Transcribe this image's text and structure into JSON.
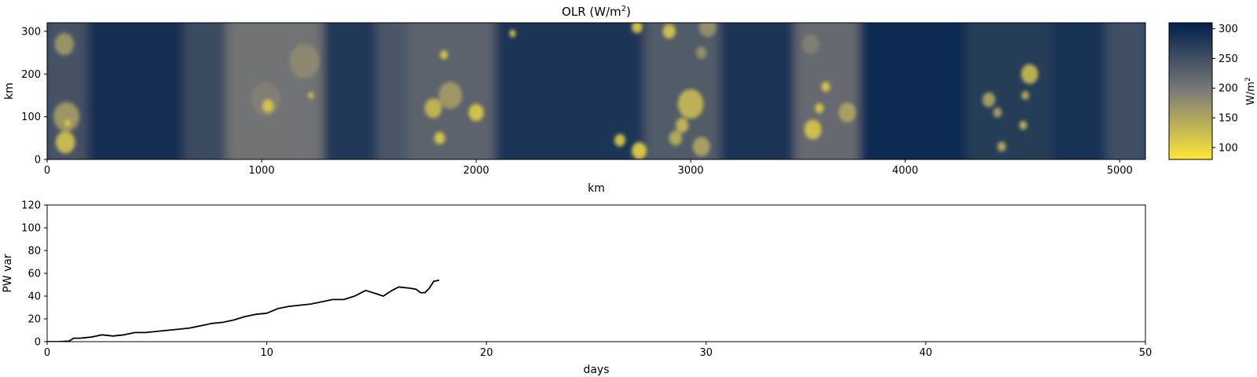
{
  "chart_data": [
    {
      "type": "heatmap",
      "title": "OLR (W/m",
      "title_superscript": "2",
      "title_suffix": ")",
      "xlabel": "km",
      "ylabel": "km",
      "xlim": [
        0,
        5120
      ],
      "ylim": [
        0,
        320
      ],
      "xticks": [
        "0",
        "1000",
        "2000",
        "3000",
        "4000",
        "5000"
      ],
      "yticks": [
        "0",
        "100",
        "200",
        "300"
      ],
      "colormap": "cividis_r",
      "colors": {
        "low": "#fde737",
        "mid": "#7c7b78",
        "high": "#00204c"
      },
      "colorbar": {
        "label": "W/m",
        "label_superscript": "2",
        "range": [
          80,
          310
        ],
        "ticks": [
          "100",
          "150",
          "200",
          "250",
          "300"
        ]
      },
      "background_olr": [
        {
          "x0": 0,
          "x1": 200,
          "olr": 245
        },
        {
          "x0": 200,
          "x1": 650,
          "olr": 292
        },
        {
          "x0": 650,
          "x1": 850,
          "olr": 255
        },
        {
          "x0": 850,
          "x1": 1300,
          "olr": 205
        },
        {
          "x0": 1300,
          "x1": 1550,
          "olr": 278
        },
        {
          "x0": 1550,
          "x1": 1700,
          "olr": 240
        },
        {
          "x0": 1700,
          "x1": 2100,
          "olr": 225
        },
        {
          "x0": 2100,
          "x1": 2800,
          "olr": 285
        },
        {
          "x0": 2800,
          "x1": 3150,
          "olr": 235
        },
        {
          "x0": 3150,
          "x1": 3500,
          "olr": 282
        },
        {
          "x0": 3500,
          "x1": 3800,
          "olr": 215
        },
        {
          "x0": 3800,
          "x1": 4300,
          "olr": 295
        },
        {
          "x0": 4300,
          "x1": 4700,
          "olr": 275
        },
        {
          "x0": 4700,
          "x1": 4950,
          "olr": 290
        },
        {
          "x0": 4950,
          "x1": 5120,
          "olr": 250
        }
      ],
      "convective_cells": [
        {
          "x": 80,
          "y": 270,
          "r": 45,
          "olr": 165
        },
        {
          "x": 90,
          "y": 100,
          "r": 60,
          "olr": 160
        },
        {
          "x": 85,
          "y": 40,
          "r": 45,
          "olr": 120
        },
        {
          "x": 95,
          "y": 85,
          "r": 12,
          "olr": 95
        },
        {
          "x": 1020,
          "y": 140,
          "r": 70,
          "olr": 190
        },
        {
          "x": 1030,
          "y": 125,
          "r": 25,
          "olr": 110
        },
        {
          "x": 1200,
          "y": 230,
          "r": 70,
          "olr": 180
        },
        {
          "x": 1230,
          "y": 150,
          "r": 12,
          "olr": 100
        },
        {
          "x": 1850,
          "y": 245,
          "r": 18,
          "olr": 110
        },
        {
          "x": 1880,
          "y": 150,
          "r": 55,
          "olr": 160
        },
        {
          "x": 1800,
          "y": 120,
          "r": 40,
          "olr": 130
        },
        {
          "x": 1830,
          "y": 50,
          "r": 25,
          "olr": 110
        },
        {
          "x": 2000,
          "y": 110,
          "r": 35,
          "olr": 110
        },
        {
          "x": 2170,
          "y": 295,
          "r": 15,
          "olr": 110
        },
        {
          "x": 2670,
          "y": 45,
          "r": 25,
          "olr": 110
        },
        {
          "x": 2760,
          "y": 20,
          "r": 35,
          "olr": 105
        },
        {
          "x": 2750,
          "y": 310,
          "r": 25,
          "olr": 110
        },
        {
          "x": 2900,
          "y": 300,
          "r": 30,
          "olr": 115
        },
        {
          "x": 3000,
          "y": 130,
          "r": 60,
          "olr": 130
        },
        {
          "x": 3050,
          "y": 30,
          "r": 40,
          "olr": 150
        },
        {
          "x": 2960,
          "y": 80,
          "r": 30,
          "olr": 130
        },
        {
          "x": 2930,
          "y": 50,
          "r": 30,
          "olr": 140
        },
        {
          "x": 3080,
          "y": 310,
          "r": 40,
          "olr": 170
        },
        {
          "x": 3050,
          "y": 250,
          "r": 25,
          "olr": 170
        },
        {
          "x": 3570,
          "y": 70,
          "r": 40,
          "olr": 115
        },
        {
          "x": 3600,
          "y": 120,
          "r": 20,
          "olr": 110
        },
        {
          "x": 3630,
          "y": 170,
          "r": 20,
          "olr": 110
        },
        {
          "x": 3730,
          "y": 110,
          "r": 40,
          "olr": 150
        },
        {
          "x": 3560,
          "y": 270,
          "r": 40,
          "olr": 190
        },
        {
          "x": 4390,
          "y": 140,
          "r": 30,
          "olr": 150
        },
        {
          "x": 4430,
          "y": 110,
          "r": 20,
          "olr": 150
        },
        {
          "x": 4450,
          "y": 30,
          "r": 20,
          "olr": 140
        },
        {
          "x": 4580,
          "y": 200,
          "r": 40,
          "olr": 130
        },
        {
          "x": 4550,
          "y": 80,
          "r": 18,
          "olr": 130
        },
        {
          "x": 4560,
          "y": 150,
          "r": 18,
          "olr": 140
        }
      ]
    },
    {
      "type": "line",
      "title": "",
      "xlabel": "days",
      "ylabel": "PW var",
      "xlim": [
        0,
        50
      ],
      "ylim": [
        0,
        120
      ],
      "xticks": [
        "0",
        "10",
        "20",
        "30",
        "40",
        "50"
      ],
      "yticks": [
        "0",
        "20",
        "40",
        "60",
        "80",
        "100",
        "120"
      ],
      "line_color": "#000000",
      "x": [
        0,
        0.5,
        1.0,
        1.2,
        1.5,
        2.0,
        2.5,
        3.0,
        3.5,
        4.0,
        4.5,
        5.0,
        5.5,
        6.0,
        6.5,
        7.0,
        7.5,
        8.0,
        8.5,
        9.0,
        9.5,
        10.0,
        10.5,
        11.0,
        11.5,
        12.0,
        12.5,
        13.0,
        13.5,
        14.0,
        14.5,
        15.0,
        15.3,
        15.7,
        16.0,
        16.5,
        16.8,
        17.0,
        17.2,
        17.4,
        17.6,
        17.85
      ],
      "y": [
        0,
        0,
        0.5,
        3,
        3,
        4,
        6,
        5,
        6,
        8,
        8,
        9,
        10,
        11,
        12,
        14,
        16,
        17,
        19,
        22,
        24,
        25,
        29,
        31,
        32,
        33,
        35,
        37,
        37,
        40,
        45,
        42,
        40,
        45,
        48,
        47,
        46,
        43,
        43,
        47,
        53,
        54
      ]
    }
  ]
}
